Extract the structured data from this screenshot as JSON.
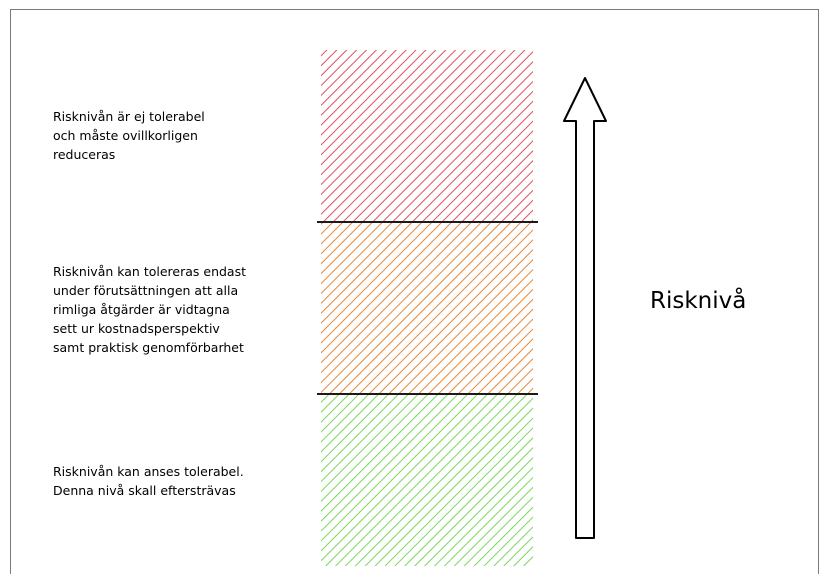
{
  "colors": {
    "high": "#e05060",
    "medium": "#e8873a",
    "low": "#7ad85e",
    "divider": "#1a1a1a",
    "arrow": "#000000"
  },
  "zones": [
    {
      "id": "high",
      "lines": [
        "Risknivån är ej tolerabel",
        "och måste ovillkorligen",
        "reduceras"
      ]
    },
    {
      "id": "medium",
      "lines": [
        "Risknivån kan tolereras endast",
        "under förutsättningen att alla",
        "rimliga åtgärder är vidtagna",
        "sett ur kostnadsperspektiv",
        "samt praktisk genomförbarhet"
      ]
    },
    {
      "id": "low",
      "lines": [
        "Risknivån kan anses tolerabel.",
        "Denna nivå skall eftersträvas"
      ]
    }
  ],
  "axis": {
    "title": "Risknivå",
    "arrow_icon": "arrow-up-icon"
  }
}
